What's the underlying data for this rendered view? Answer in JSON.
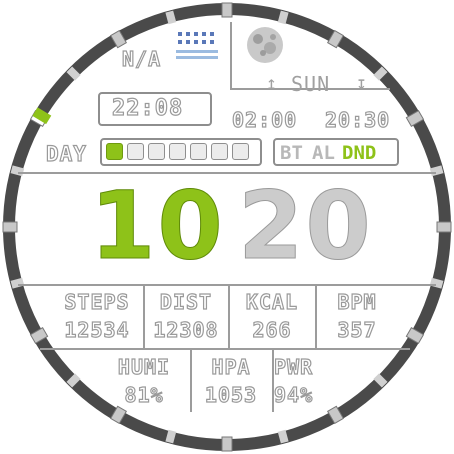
{
  "colors": {
    "accent": "#8ec219",
    "ring": "#4a4a4a",
    "muted": "#a0a0a0"
  },
  "moon_icon": "full-moon-icon",
  "weather_icon": "rain-icon",
  "weather": {
    "code": "N/A"
  },
  "alarm": {
    "time": "22:08"
  },
  "day_of_week": "SUN",
  "sun": {
    "rise": "02:00",
    "set": "20:30"
  },
  "day_label": "DAY",
  "day_progress": {
    "filled": 1,
    "total": 7
  },
  "status": {
    "bt": "BT",
    "al": "AL",
    "dnd": "DND"
  },
  "time": {
    "hours": "10",
    "minutes": "20"
  },
  "stats_row1": [
    {
      "label": "STEPS",
      "value": "12534"
    },
    {
      "label": "DIST",
      "value": "12308"
    },
    {
      "label": "KCAL",
      "value": "266"
    },
    {
      "label": "BPM",
      "value": "357"
    }
  ],
  "stats_row2": [
    {
      "label": "HUMI",
      "value": "81%"
    },
    {
      "label": "HPA",
      "value": "1053"
    },
    {
      "label": "PWR",
      "value": "94%"
    }
  ]
}
